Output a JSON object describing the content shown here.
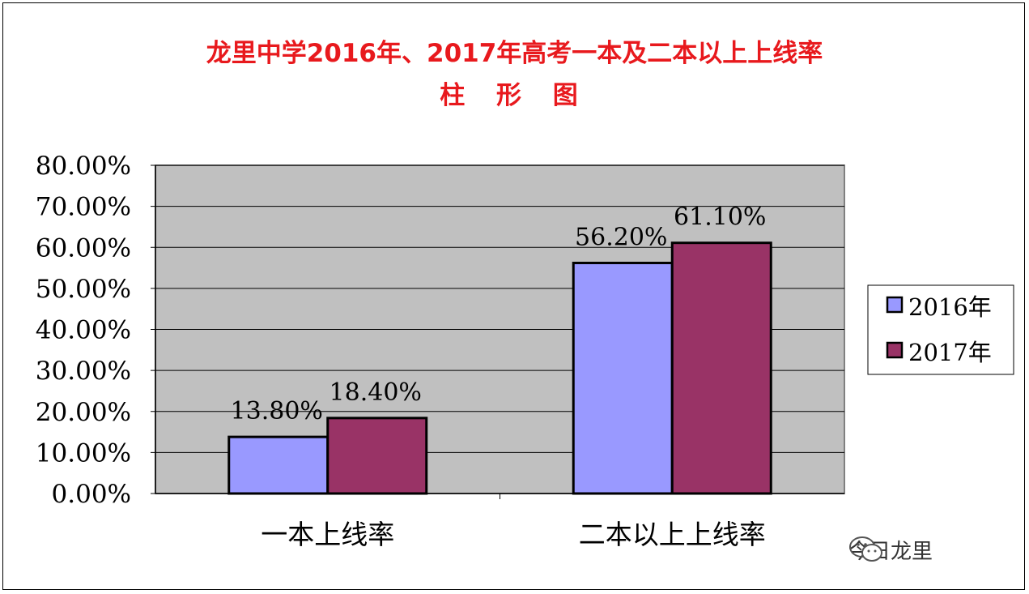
{
  "chart_data": {
    "type": "bar",
    "title": "龙里中学2016年、2017年高考一本及二本以上上线率",
    "subtitle": "柱 形 图",
    "categories": [
      "一本上线率",
      "二本以上上线率"
    ],
    "series": [
      {
        "name": "2016年",
        "values": [
          13.8,
          56.2
        ],
        "labels": [
          "13.80%",
          "56.20%"
        ],
        "color": "#9999ff"
      },
      {
        "name": "2017年",
        "values": [
          18.4,
          61.1
        ],
        "labels": [
          "18.40%",
          "61.10%"
        ],
        "color": "#993366"
      }
    ],
    "ylim": [
      0,
      80
    ],
    "yticks": [
      0,
      10,
      20,
      30,
      40,
      50,
      60,
      70,
      80
    ],
    "ytick_labels": [
      "0.00%",
      "10.00%",
      "20.00%",
      "30.00%",
      "40.00%",
      "50.00%",
      "60.00%",
      "70.00%",
      "80.00%"
    ],
    "plot_background": "#c0c0c0",
    "grid": true,
    "legend_position": "right"
  },
  "watermark": {
    "text": "今日龙里",
    "icon": "wechat-icon"
  }
}
